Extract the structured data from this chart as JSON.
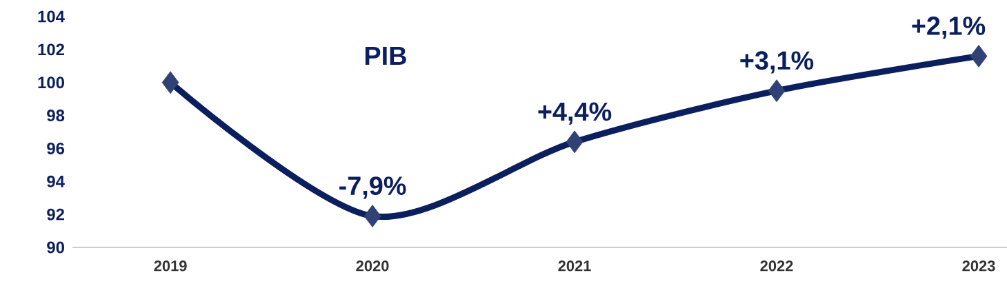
{
  "chart_data": {
    "type": "line",
    "title": "PIB",
    "categories": [
      "2019",
      "2020",
      "2021",
      "2022",
      "2023"
    ],
    "series": [
      {
        "color": "#0b1f5e",
        "values": [
          100,
          91.9,
          96.4,
          99.5,
          101.6
        ]
      }
    ],
    "annotations": [
      {
        "text": "-7,9%",
        "x": "2020",
        "y": 91.9
      },
      {
        "text": "+4,4%",
        "x": "2021",
        "y": 96.4
      },
      {
        "text": "+3,1%",
        "x": "2022",
        "y": 99.5
      },
      {
        "text": "+2,1%",
        "x": "2023",
        "y": 101.6
      }
    ],
    "ylim": [
      90,
      104
    ],
    "yticks": [
      90,
      92,
      94,
      96,
      98,
      100,
      102,
      104
    ],
    "marker": "diamond",
    "line_style": "solid",
    "grid": false
  }
}
